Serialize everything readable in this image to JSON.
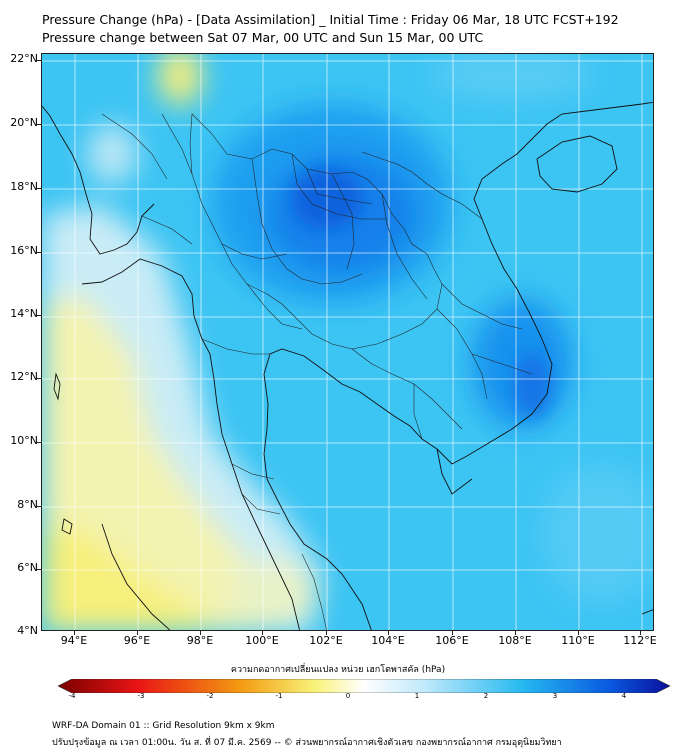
{
  "title": {
    "line1": "Pressure Change (hPa) - [Data Assimilation] _ Initial Time : Friday 06 Mar, 18 UTC FCST+192",
    "line2": "Pressure change between Sat 07 Mar, 00 UTC and Sun 15 Mar, 00 UTC"
  },
  "map": {
    "lat_range": [
      4,
      22
    ],
    "lon_range": [
      93,
      112.5
    ],
    "lat_labels": [
      "22°N",
      "20°N",
      "18°N",
      "16°N",
      "14°N",
      "12°N",
      "10°N",
      "8°N",
      "6°N",
      "4°N"
    ],
    "lon_labels": [
      "94°E",
      "96°E",
      "98°E",
      "100°E",
      "102°E",
      "104°E",
      "106°E",
      "108°E",
      "110°E",
      "112°E"
    ]
  },
  "colorbar": {
    "label": "ความกดอากาศเปลี่ยนแปลง หน่วย เฮกโตพาสคัล (hPa)",
    "min": -4,
    "max": 4,
    "ticks": [
      "-4",
      "-3",
      "-2",
      "-1",
      "0",
      "1",
      "2",
      "3",
      "4"
    ],
    "colors": {
      "neg_deep": "#7a0000",
      "neg_red": "#e81414",
      "neg_orange": "#f39c12",
      "neg_yellow": "#f9f37a",
      "zero_white": "#ffffff",
      "pos_light": "#bfe9fb",
      "pos_cyan": "#25b9f0",
      "pos_blue": "#0a5ae0",
      "pos_deep": "#0a0f9c"
    }
  },
  "footer": {
    "line1": "WRF-DA Domain 01 :: Grid Resolution 9km x 9km",
    "line2": "ปรับปรุงข้อมูล ณ เวลา 01:00น. วัน ส. ที่ 07 มี.ค. 2569 -- © ส่วนพยากรณ์อากาศเชิงตัวเลข กองพยากรณ์อากาศ กรมอุตุนิยมวิทยา"
  }
}
